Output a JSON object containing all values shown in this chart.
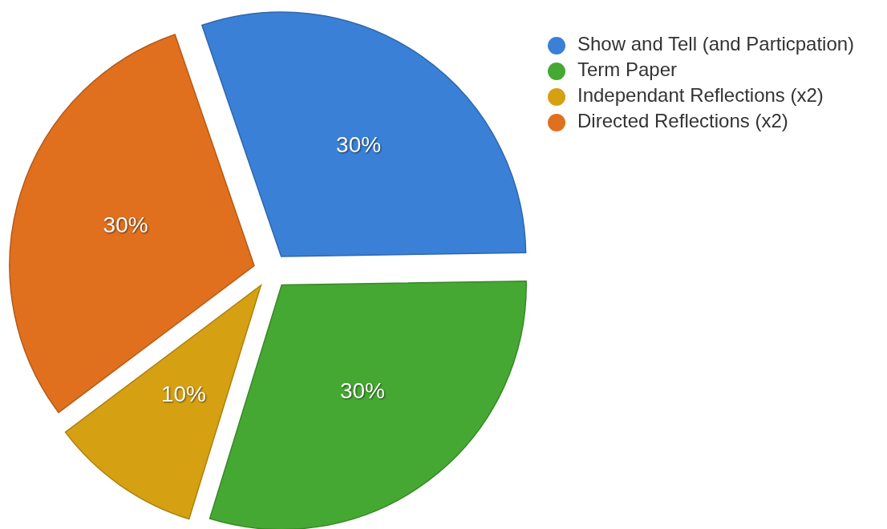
{
  "chart_data": {
    "type": "pie",
    "categories": [
      "Show and Tell (and Particpation)",
      "Term Paper",
      "Independant Reflections (x2)",
      "Directed Reflections (x2)"
    ],
    "values": [
      30,
      30,
      10,
      30
    ],
    "value_labels": [
      "30%",
      "30%",
      "10%",
      "30%"
    ],
    "colors": [
      "#3a80d6",
      "#45a832",
      "#d5a012",
      "#e0701e"
    ],
    "legend": "top right"
  }
}
